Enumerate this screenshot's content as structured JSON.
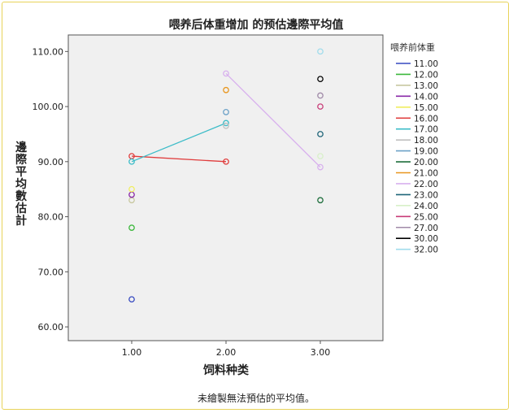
{
  "chart_data": {
    "type": "line",
    "title": "喂养后体重增加 的预估邊際平均值",
    "xlabel": "饲料种类",
    "ylabel": "邊際平均數估計",
    "footnote": "未繪製無法預估的平均值。",
    "legend_title": "喂养前体重",
    "legend_position": "right",
    "x_ticks": [
      "1.00",
      "2.00",
      "3.00"
    ],
    "y_ticks": [
      "60.00",
      "70.00",
      "80.00",
      "90.00",
      "100.00",
      "110.00"
    ],
    "ylim": [
      57.5,
      113
    ],
    "grid": false,
    "series": [
      {
        "name": "11.00",
        "color": "#3548c0",
        "values": [
          65,
          null,
          null
        ]
      },
      {
        "name": "12.00",
        "color": "#3cb83c",
        "values": [
          78,
          null,
          null
        ]
      },
      {
        "name": "13.00",
        "color": "#c8c8a0",
        "values": [
          83,
          null,
          null
        ]
      },
      {
        "name": "14.00",
        "color": "#8a28a8",
        "values": [
          84,
          null,
          null
        ]
      },
      {
        "name": "15.00",
        "color": "#f0ee60",
        "values": [
          85,
          null,
          null
        ]
      },
      {
        "name": "16.00",
        "color": "#e03c3c",
        "values": [
          91,
          90,
          null
        ]
      },
      {
        "name": "17.00",
        "color": "#3cbcc8",
        "values": [
          90,
          97,
          null
        ]
      },
      {
        "name": "18.00",
        "color": "#c0c0c0",
        "values": [
          null,
          96.5,
          null
        ]
      },
      {
        "name": "19.00",
        "color": "#6da2c8",
        "values": [
          null,
          99,
          null
        ]
      },
      {
        "name": "20.00",
        "color": "#1e6e3c",
        "values": [
          null,
          null,
          83
        ]
      },
      {
        "name": "21.00",
        "color": "#e8961e",
        "values": [
          null,
          103,
          null
        ]
      },
      {
        "name": "22.00",
        "color": "#d8b0ee",
        "values": [
          null,
          106,
          89
        ]
      },
      {
        "name": "23.00",
        "color": "#1e6478",
        "values": [
          null,
          null,
          95
        ]
      },
      {
        "name": "24.00",
        "color": "#d8f0c8",
        "values": [
          null,
          null,
          91
        ]
      },
      {
        "name": "25.00",
        "color": "#c83c78",
        "values": [
          null,
          null,
          100
        ]
      },
      {
        "name": "27.00",
        "color": "#a08aa8",
        "values": [
          null,
          null,
          102
        ]
      },
      {
        "name": "30.00",
        "color": "#000000",
        "values": [
          null,
          null,
          105
        ]
      },
      {
        "name": "32.00",
        "color": "#a0dcec",
        "values": [
          null,
          null,
          110
        ]
      }
    ]
  }
}
